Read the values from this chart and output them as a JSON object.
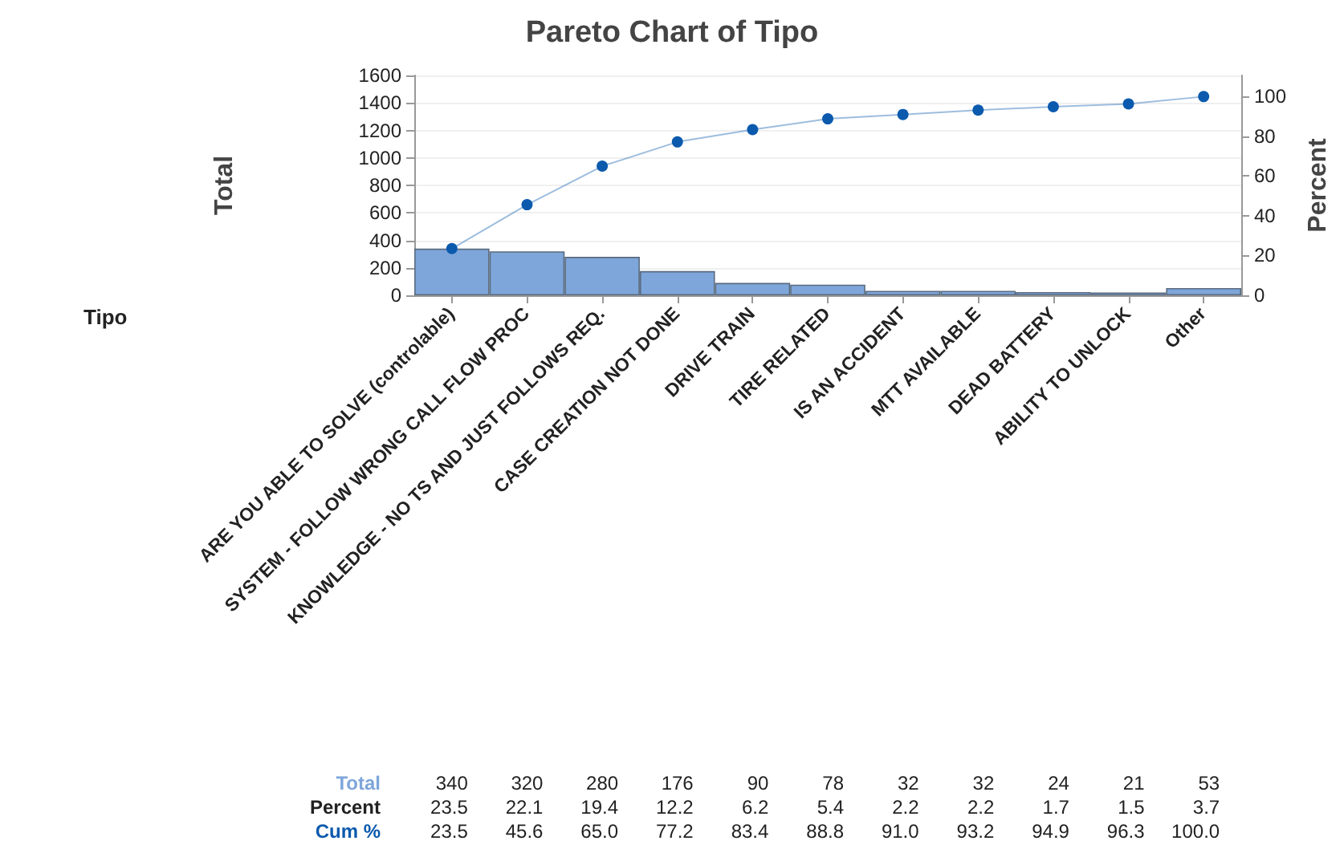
{
  "chart_data": {
    "type": "bar",
    "title": "Pareto Chart of Tipo",
    "xlabel": "Tipo",
    "ylabel": "Total",
    "y2label": "Percent",
    "categories": [
      "ARE YOU ABLE TO SOLVE (controlable)",
      "SYSTEM - FOLLOW WRONG CALL FLOW PROC",
      "KNOWLEDGE - NO TS AND JUST FOLLOWS REQ.",
      "CASE CREATION NOT DONE",
      "DRIVE TRAIN",
      "TIRE RELATED",
      "IS AN ACCIDENT",
      "MTT AVAILABLE",
      "DEAD BATTERY",
      "ABILITY TO UNLOCK",
      "Other"
    ],
    "series": [
      {
        "name": "Total",
        "color": "#7ea6da",
        "values": [
          340,
          320,
          280,
          176,
          90,
          78,
          32,
          32,
          24,
          21,
          53
        ]
      },
      {
        "name": "Cum %",
        "type": "line",
        "axis": "y2",
        "color": "#0b5aad",
        "values": [
          23.5,
          45.6,
          65.0,
          77.2,
          83.4,
          88.8,
          91.0,
          93.2,
          94.9,
          96.3,
          100.0
        ],
        "value_labels": [
          "23.5",
          "45.6",
          "65.0",
          "77.2",
          "83.4",
          "88.8",
          "91.0",
          "93.2",
          "94.9",
          "96.3",
          "100.0"
        ]
      }
    ],
    "annotations": [
      "Percent",
      "23.5",
      "22.1",
      "19.4",
      "12.2",
      "6.2",
      "5.4",
      "2.2",
      "2.2",
      "1.7",
      "1.5",
      "3.7"
    ],
    "data_labels": true,
    "marker": "circle",
    "grid": "y",
    "ylim": [
      0,
      1600
    ],
    "yticks": [
      0,
      200,
      400,
      600,
      800,
      1000,
      1200,
      1400,
      1600
    ],
    "y2lim": [
      0,
      110.65
    ],
    "y2ticks": [
      0,
      20,
      40,
      60,
      80,
      100
    ]
  }
}
